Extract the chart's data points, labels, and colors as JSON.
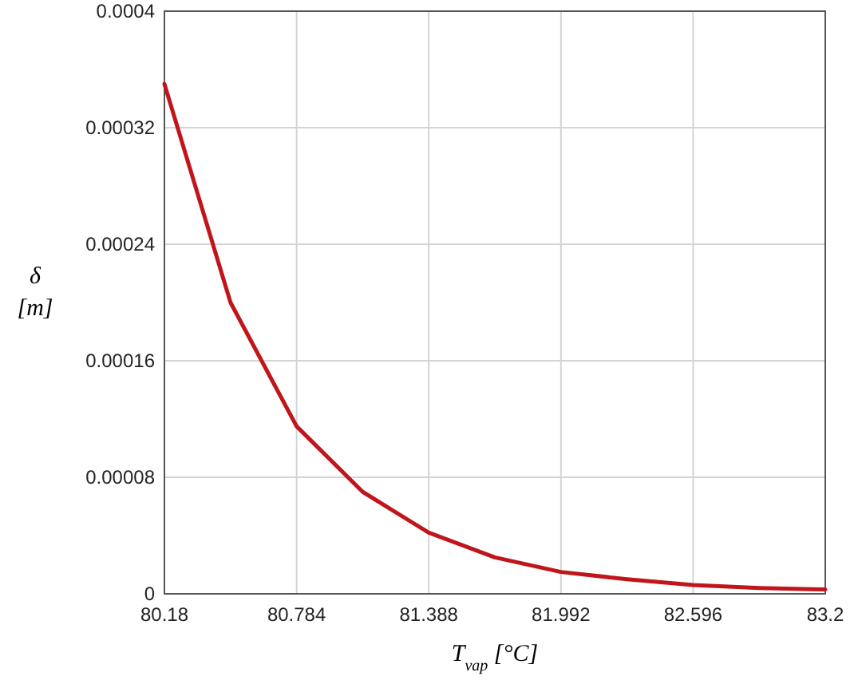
{
  "chart_data": {
    "type": "line",
    "xlabel": "T$_{vap}$ [°C]",
    "ylabel": "δ [m]",
    "x": [
      80.18,
      80.482,
      80.784,
      81.086,
      81.388,
      81.69,
      81.992,
      82.294,
      82.596,
      82.898,
      83.2
    ],
    "series": [
      {
        "color": "#c0161b",
        "values": [
          0.00035,
          0.0002,
          0.000115,
          7e-05,
          4.2e-05,
          2.5e-05,
          1.5e-05,
          1e-05,
          6e-06,
          4e-06,
          3e-06
        ]
      }
    ],
    "xlim": [
      80.18,
      83.2
    ],
    "xticks": [
      80.18,
      80.784,
      81.388,
      81.992,
      82.596,
      83.2
    ],
    "ylim": [
      0,
      0.0004
    ],
    "yticks": [
      0,
      {
        "value": 8e-05,
        "label": "0.00008"
      },
      0.00016,
      0.00024,
      0.00032,
      0.0004
    ],
    "grid": true,
    "line_style": "solid",
    "marker": "none"
  }
}
